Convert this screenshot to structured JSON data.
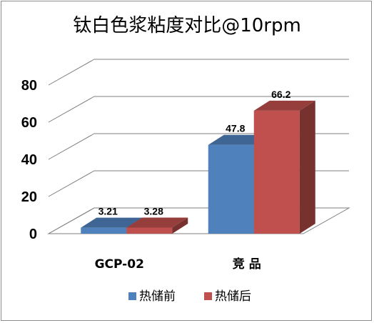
{
  "chart_data": {
    "type": "bar",
    "title": "钛白色浆粘度对比@10rpm",
    "categories": [
      "GCP-02",
      "竞 品"
    ],
    "series": [
      {
        "name": "热储前",
        "values": [
          3.21,
          47.8
        ],
        "color": "#4F81BD"
      },
      {
        "name": "热储后",
        "values": [
          3.28,
          66.2
        ],
        "color": "#C0504D"
      }
    ],
    "ylim": [
      0,
      80
    ],
    "yticks": [
      "0",
      "20",
      "40",
      "60",
      "80"
    ],
    "grid": true,
    "legend": "bottom",
    "style": "3d-clustered-column"
  }
}
